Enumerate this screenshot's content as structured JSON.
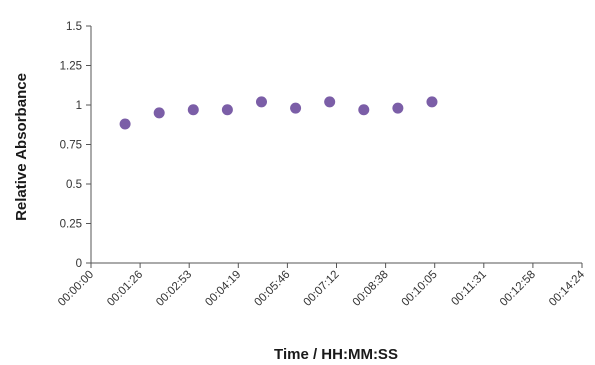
{
  "chart_data": {
    "type": "scatter",
    "title": "",
    "xlabel": "Time / HH:MM:SS",
    "ylabel": "Relative Absorbance",
    "xlim_seconds": [
      0,
      864
    ],
    "ylim": [
      0,
      1.5
    ],
    "x_tick_labels": [
      "00:00:00",
      "00:01:26",
      "00:02:53",
      "00:04:19",
      "00:05:46",
      "00:07:12",
      "00:08:38",
      "00:10:05",
      "00:11:31",
      "00:12:58",
      "00:14:24"
    ],
    "y_tick_labels": [
      "0",
      "0.25",
      "0.5",
      "0.75",
      "1",
      "1.25",
      "1.5"
    ],
    "y_tick_values": [
      0,
      0.25,
      0.5,
      0.75,
      1,
      1.25,
      1.5
    ],
    "grid": false,
    "marker_color": "#7b5ea7",
    "series": [
      {
        "x": [
          "00:01:00",
          "00:02:00",
          "00:03:00",
          "00:04:00",
          "00:05:00",
          "00:06:00",
          "00:07:00",
          "00:08:00",
          "00:09:00",
          "00:10:00"
        ],
        "values": [
          0.88,
          0.95,
          0.97,
          0.97,
          1.02,
          0.98,
          1.02,
          0.97,
          0.98,
          1.02
        ]
      }
    ]
  }
}
